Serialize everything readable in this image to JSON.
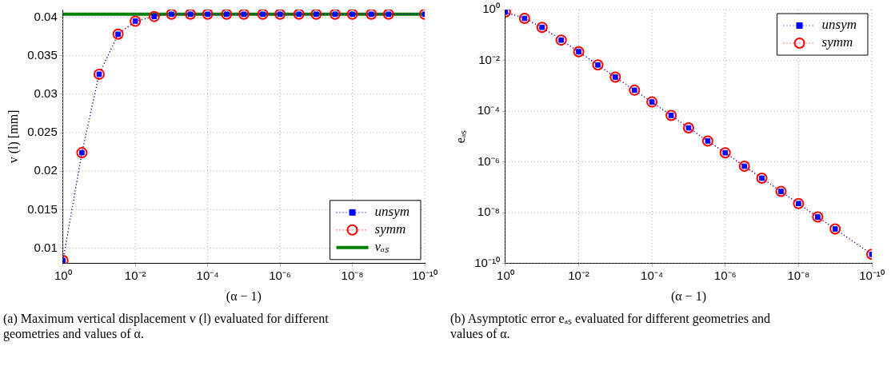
{
  "chart_data": [
    {
      "type": "line",
      "xlabel": "(α − 1)",
      "ylabel": "v (l) [mm]",
      "log": "x",
      "grid": true,
      "legend": "bottom right",
      "x": [
        1,
        0.3,
        0.1,
        0.03,
        0.01,
        0.003,
        0.001,
        0.0003,
        0.0001,
        3e-05,
        1e-05,
        3e-06,
        1e-06,
        3e-07,
        1e-07,
        3e-08,
        1e-08,
        3e-09,
        1e-09,
        1e-10
      ],
      "xlim": [
        1,
        1e-10
      ],
      "xticks": [
        {
          "value": 1,
          "label": "10⁰"
        },
        {
          "value": 0.01,
          "label": "10⁻²"
        },
        {
          "value": 0.0001,
          "label": "10⁻⁴"
        },
        {
          "value": 1e-06,
          "label": "10⁻⁶"
        },
        {
          "value": 1e-08,
          "label": "10⁻⁸"
        },
        {
          "value": 1e-10,
          "label": "10⁻¹⁰"
        }
      ],
      "ylim": [
        0.008,
        0.041
      ],
      "yticks": [
        0.01,
        0.015,
        0.02,
        0.025,
        0.03,
        0.035,
        0.04
      ],
      "series": [
        {
          "name": "unsym",
          "color": "#0000ff",
          "marker": "square",
          "line_style": "dotted",
          "values": [
            0.0084,
            0.0224,
            0.0326,
            0.0378,
            0.0395,
            0.0401,
            0.0404,
            0.0404,
            0.0404,
            0.0404,
            0.0404,
            0.0404,
            0.0404,
            0.0404,
            0.0404,
            0.0404,
            0.0404,
            0.0404,
            0.0404,
            0.0404
          ]
        },
        {
          "name": "symm",
          "color": "#ff0000",
          "marker": "circle",
          "line_style": "dotted",
          "values": [
            0.0084,
            0.0224,
            0.0326,
            0.0378,
            0.0395,
            0.0401,
            0.0404,
            0.0404,
            0.0404,
            0.0404,
            0.0404,
            0.0404,
            0.0404,
            0.0404,
            0.0404,
            0.0404,
            0.0404,
            0.0404,
            0.0404,
            0.0404
          ]
        },
        {
          "name": "vₐₛ",
          "color": "#008000",
          "marker": "none",
          "line_style": "solid",
          "x": [
            1,
            1e-10
          ],
          "values": [
            0.0404,
            0.0404
          ]
        }
      ],
      "annotations": [
        "(a) Maximum vertical displacement v (l) evaluated for different geometries and values of α."
      ]
    },
    {
      "type": "line",
      "xlabel": "(α − 1)",
      "ylabel": "eₐₛ",
      "log": "xy",
      "grid": true,
      "legend": "top right",
      "x": [
        1,
        0.3,
        0.1,
        0.03,
        0.01,
        0.003,
        0.001,
        0.0003,
        0.0001,
        3e-05,
        1e-05,
        3e-06,
        1e-06,
        3e-07,
        1e-07,
        3e-08,
        1e-08,
        3e-09,
        1e-09,
        1e-10
      ],
      "xlim": [
        1,
        1e-10
      ],
      "xticks": [
        {
          "value": 1,
          "label": "10⁰"
        },
        {
          "value": 0.01,
          "label": "10⁻²"
        },
        {
          "value": 0.0001,
          "label": "10⁻⁴"
        },
        {
          "value": 1e-06,
          "label": "10⁻⁶"
        },
        {
          "value": 1e-08,
          "label": "10⁻⁸"
        },
        {
          "value": 1e-10,
          "label": "10⁻¹⁰"
        }
      ],
      "ylim": [
        1e-10,
        1
      ],
      "yticks": [
        {
          "value": 1,
          "label": "10⁰"
        },
        {
          "value": 0.01,
          "label": "10⁻²"
        },
        {
          "value": 0.0001,
          "label": "10⁻⁴"
        },
        {
          "value": 1e-06,
          "label": "10⁻⁶"
        },
        {
          "value": 1e-08,
          "label": "10⁻⁸"
        },
        {
          "value": 1e-10,
          "label": "10⁻¹⁰"
        }
      ],
      "series": [
        {
          "name": "unsym",
          "color": "#0000ff",
          "marker": "square",
          "line_style": "dotted",
          "values": [
            0.8,
            0.45,
            0.2,
            0.063,
            0.022,
            0.0066,
            0.0022,
            0.00067,
            0.00023,
            6.8e-05,
            2.2e-05,
            6.7e-06,
            2.3e-06,
            6.8e-07,
            2.3e-07,
            6.9e-08,
            2.3e-08,
            6.8e-09,
            2.3e-09,
            2.3e-10
          ]
        },
        {
          "name": "symm",
          "color": "#ff0000",
          "marker": "circle",
          "line_style": "dotted",
          "values": [
            0.8,
            0.45,
            0.2,
            0.063,
            0.022,
            0.0066,
            0.0022,
            0.00067,
            0.00023,
            6.8e-05,
            2.2e-05,
            6.7e-06,
            2.3e-06,
            6.8e-07,
            2.3e-07,
            6.9e-08,
            2.3e-08,
            6.8e-09,
            2.3e-09,
            2.3e-10
          ]
        }
      ],
      "annotations": [
        "(b) Asymptotic error eₐₛ evaluated for different geometries and values of α."
      ]
    }
  ]
}
